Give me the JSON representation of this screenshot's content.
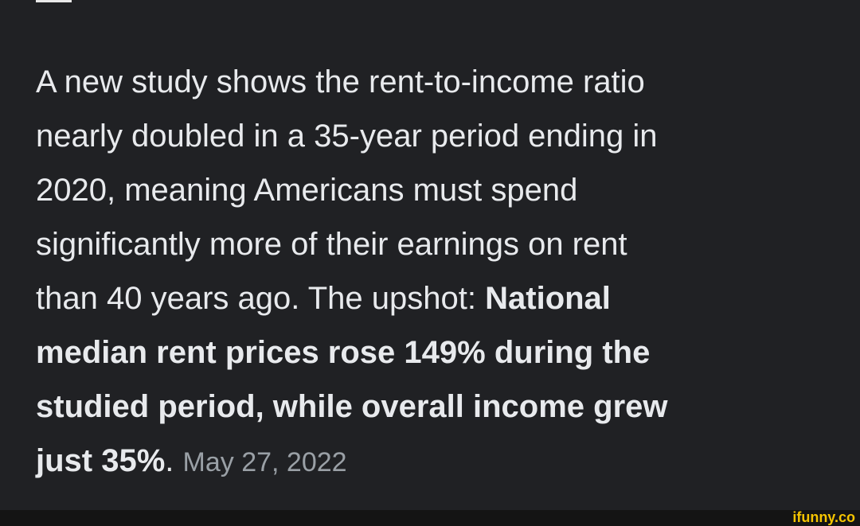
{
  "post": {
    "body_regular": [
      "A new study shows the rent-to-income ratio",
      "nearly doubled in a 35-year period ending in",
      "2020, meaning Americans must spend",
      "significantly more of their earnings on rent",
      "than 40 years ago. The upshot:"
    ],
    "body_bold": [
      "National",
      "median rent prices rose 149% during the",
      "studied period, while overall income grew",
      "just 35%"
    ],
    "body_end": ".",
    "date": "May 27, 2022"
  },
  "watermark": "ifunny.co"
}
